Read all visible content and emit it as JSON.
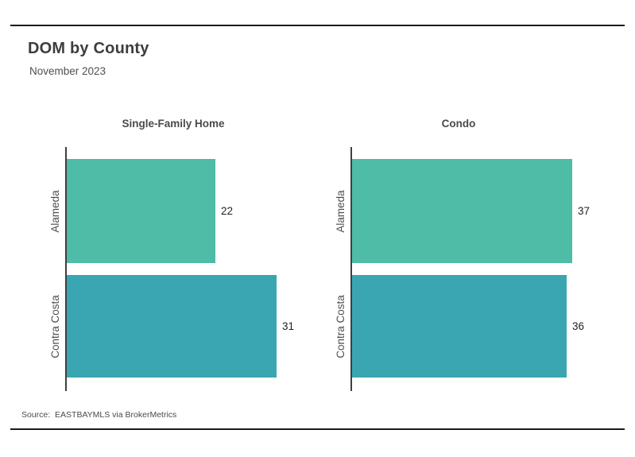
{
  "page": {
    "title": "DOM by County",
    "subtitle": "November 2023",
    "source": "Source:  EASTBAYMLS via BrokerMetrics"
  },
  "colors": {
    "bar_alameda": "#4ebca6",
    "bar_contra_costa": "#3aa6b1",
    "axis_spine": "#3f3f3f",
    "rule": "#1b1b1b",
    "title_text": "#3d3d3d",
    "value_text": "#1f1f1f"
  },
  "chart_data": [
    {
      "type": "bar",
      "orientation": "horizontal",
      "title": "Single-Family Home",
      "categories": [
        "Alameda",
        "Contra Costa"
      ],
      "values": [
        22,
        31
      ],
      "data_labels": [
        22,
        31
      ],
      "xlim": [
        0,
        36
      ],
      "bar_colors": [
        "#4ebca6",
        "#3aa6b1"
      ],
      "grid": false,
      "legend": false
    },
    {
      "type": "bar",
      "orientation": "horizontal",
      "title": "Condo",
      "categories": [
        "Alameda",
        "Contra Costa"
      ],
      "values": [
        37,
        36
      ],
      "data_labels": [
        37,
        36
      ],
      "xlim": [
        0,
        45
      ],
      "bar_colors": [
        "#4ebca6",
        "#3aa6b1"
      ],
      "grid": false,
      "legend": false
    }
  ]
}
